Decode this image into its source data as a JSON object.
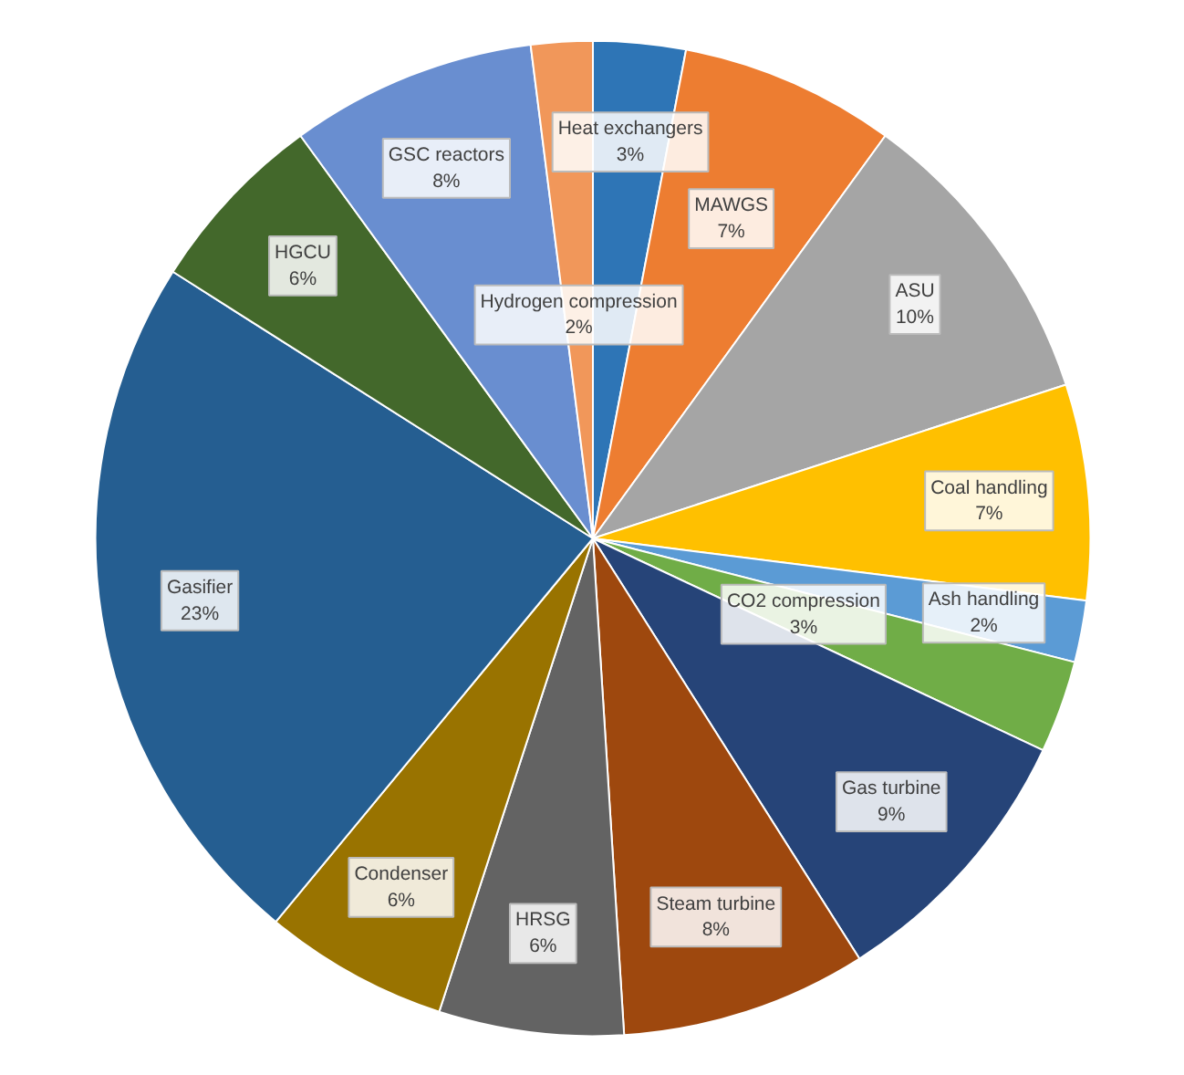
{
  "chart_data": {
    "type": "pie",
    "categories": [
      "Heat exchangers",
      "MAWGS",
      "ASU",
      "Coal handling",
      "Ash handling",
      "CO2 compression",
      "Gas turbine",
      "Steam turbine",
      "HRSG",
      "Condenser",
      "Gasifier",
      "HGCU",
      "GSC reactors",
      "Hydrogen compression"
    ],
    "values": [
      3,
      7,
      10,
      7,
      2,
      3,
      9,
      8,
      6,
      6,
      23,
      6,
      8,
      2
    ],
    "colors": [
      "#2e75b6",
      "#ed7d31",
      "#a5a5a5",
      "#ffc000",
      "#5b9bd5",
      "#70ad47",
      "#264478",
      "#9e480e",
      "#636363",
      "#997300",
      "#255e91",
      "#43682b",
      "#698ed0",
      "#f1975a"
    ],
    "value_labels": [
      "3%",
      "7%",
      "10%",
      "7%",
      "2%",
      "3%",
      "9%",
      "8%",
      "6%",
      "6%",
      "23%",
      "6%",
      "8%",
      "2%"
    ]
  }
}
